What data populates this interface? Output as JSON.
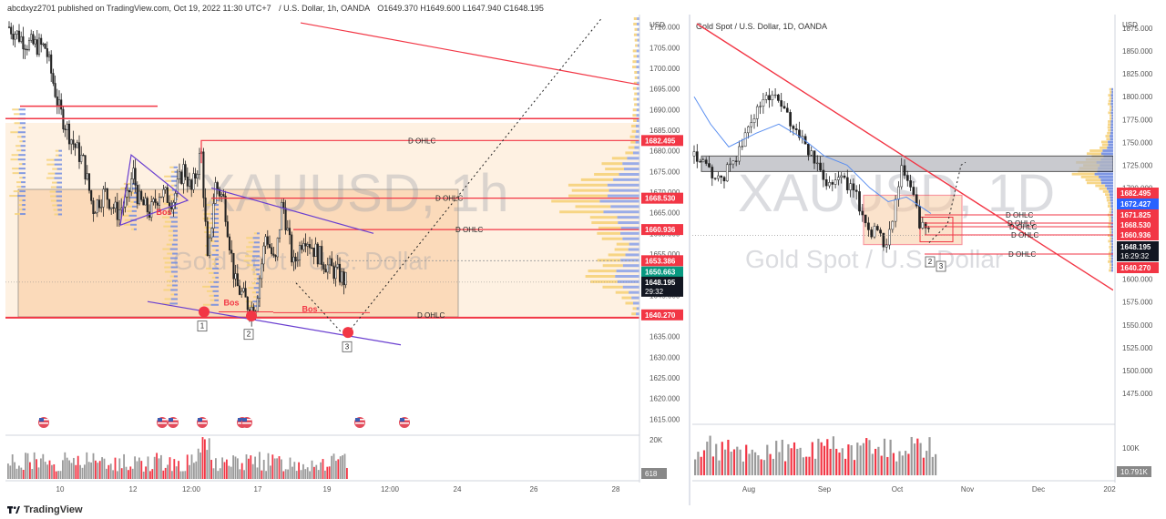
{
  "header": {
    "publisher": "abcdxyz2701 published on TradingView.com, Oct 19, 2022 11:30 UTC+7",
    "left_symbol": "/ U.S. Dollar, 1h, OANDA",
    "left_ohlc": "O1649.370  H1649.600  L1647.940  C1648.195",
    "right_symbol": "Gold Spot / U.S. Dollar, 1D, OANDA"
  },
  "footer": {
    "brand": "TradingView",
    "logo_icon": "tradingview-logo-icon"
  },
  "watermark": {
    "left_big": "XAUUSD, 1h",
    "left_small": "Gold Spot / U.S. Dollar",
    "right_big": "XAUUSD, 1D",
    "right_small": "Gold Spot / U.S. Dollar"
  },
  "chart_data": [
    {
      "type": "candlestick",
      "title": "XAUUSD, 1h",
      "currency": "USD",
      "ylim": [
        1612,
        1713
      ],
      "y_ticks": [
        "1710.000",
        "1705.000",
        "1700.000",
        "1695.000",
        "1690.000",
        "1685.000",
        "1680.000",
        "1675.000",
        "1670.000",
        "1665.000",
        "1660.000",
        "1655.000",
        "1650.000",
        "1645.000",
        "1640.000",
        "1635.000",
        "1630.000",
        "1625.000",
        "1620.000",
        "1615.000"
      ],
      "x_ticks": [
        "10",
        "12",
        "12:00",
        "17",
        "19",
        "12:00",
        "24",
        "26",
        "28"
      ],
      "price_labels": [
        {
          "value": 1682.495,
          "text": "1682.495",
          "color": "#f23645"
        },
        {
          "value": 1668.53,
          "text": "1668.530",
          "color": "#f23645"
        },
        {
          "value": 1660.936,
          "text": "1660.936",
          "color": "#f23645"
        },
        {
          "value": 1653.386,
          "text": "1653.386",
          "color": "#f23645"
        },
        {
          "value": 1650.663,
          "text": "1650.663",
          "color": "#089981"
        },
        {
          "value": 1640.27,
          "text": "1640.270",
          "color": "#f23645"
        }
      ],
      "current_price": {
        "value": 1648.195,
        "text": "1648.195",
        "countdown": "29:32"
      },
      "level_labels": [
        {
          "text": "D OHLC",
          "value": 1682.495
        },
        {
          "text": "D OHLC",
          "value": 1668.53
        },
        {
          "text": "D OHLC",
          "value": 1660.936
        },
        {
          "text": "D OHLC",
          "value": 1640.27
        }
      ],
      "annotations": [
        {
          "text": "Bos",
          "x": "11 14:00",
          "y": 1664.5,
          "color": "#f23645"
        },
        {
          "text": "Bos",
          "x": "14 08:00",
          "y": 1642.5,
          "color": "#f23645"
        },
        {
          "text": "Bos",
          "x": "17 12:00",
          "y": 1641.0,
          "color": "#f23645"
        },
        {
          "text": "1",
          "x": "14 02:00",
          "y": 1637
        },
        {
          "text": "2",
          "x": "17 00:00",
          "y": 1635
        },
        {
          "text": "3",
          "x": "19 18:00",
          "y": 1632
        }
      ],
      "volume_axis": {
        "label": "20K",
        "current": "618"
      },
      "events_icon": "us-flag-icon"
    },
    {
      "type": "candlestick",
      "title": "XAUUSD, 1D",
      "currency": "USD",
      "ylim": [
        1445,
        1890
      ],
      "y_ticks": [
        "1875.000",
        "1850.000",
        "1825.000",
        "1800.000",
        "1775.000",
        "1750.000",
        "1725.000",
        "1700.000",
        "1675.000",
        "1650.000",
        "1625.000",
        "1600.000",
        "1575.000",
        "1550.000",
        "1525.000",
        "1500.000",
        "1475.000"
      ],
      "x_ticks": [
        "Aug",
        "Sep",
        "Oct",
        "Nov",
        "Dec",
        "202"
      ],
      "price_labels": [
        {
          "value": 1682.495,
          "text": "1682.495",
          "color": "#f23645"
        },
        {
          "value": 1672.427,
          "text": "1672.427",
          "color": "#2962ff"
        },
        {
          "value": 1671.825,
          "text": "1671.825",
          "color": "#f23645"
        },
        {
          "value": 1668.53,
          "text": "1668.530",
          "color": "#f23645"
        },
        {
          "value": 1660.936,
          "text": "1660.936",
          "color": "#f23645"
        },
        {
          "value": 1640.27,
          "text": "1640.270",
          "color": "#f23645"
        }
      ],
      "current_price": {
        "value": 1648.195,
        "text": "1648.195",
        "countdown": "16:29:32"
      },
      "level_labels": [
        {
          "text": "D OHLC",
          "value": 1671.825
        },
        {
          "text": "D OHLC",
          "value": 1668.53
        },
        {
          "text": "D OHLC",
          "value": 1664.5
        },
        {
          "text": "D OHLC",
          "value": 1660.936
        },
        {
          "text": "D OHLC",
          "value": 1640.27
        }
      ],
      "annotations": [
        {
          "text": "2",
          "x": "Oct 21",
          "y": 1637
        },
        {
          "text": "3",
          "x": "Oct 28",
          "y": 1632
        }
      ],
      "volume_axis": {
        "label": "100K",
        "current": "10.791K"
      }
    }
  ]
}
